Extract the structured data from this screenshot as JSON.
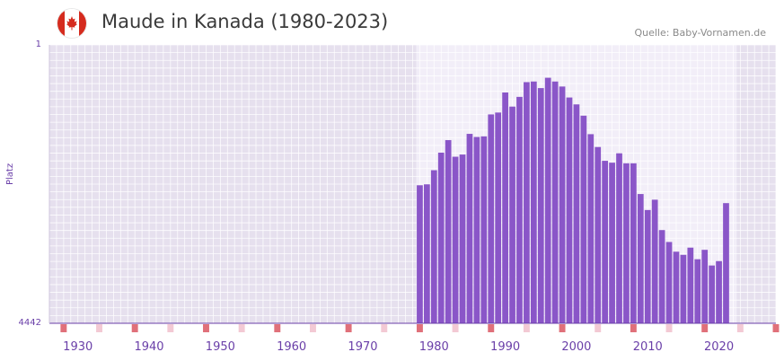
{
  "header": {
    "title": "Maude in Kanada (1980-2023)",
    "source": "Quelle: Baby-Vornamen.de"
  },
  "colors": {
    "bar": "#8a56c8",
    "plot_bg": "#e6e0ee",
    "data_bg": "#f2eef8",
    "marker": "#e0707a",
    "marker_light": "#f3c9d4",
    "axis": "#6a3fa8"
  },
  "chart_data": {
    "type": "bar",
    "title": "Maude in Kanada (1980-2023)",
    "xlabel": "",
    "ylabel": "Platz",
    "y_ticks": [
      "1",
      "4442"
    ],
    "ylim": [
      1,
      4442
    ],
    "y_inverted": true,
    "xlim": [
      1926,
      2028
    ],
    "x_ticks": [
      "1930",
      "1940",
      "1950",
      "1960",
      "1970",
      "1980",
      "1990",
      "2000",
      "2010",
      "2020"
    ],
    "categories": [
      1978,
      1979,
      1980,
      1981,
      1982,
      1983,
      1984,
      1985,
      1986,
      1987,
      1988,
      1989,
      1990,
      1991,
      1992,
      1993,
      1994,
      1995,
      1996,
      1997,
      1998,
      1999,
      2000,
      2001,
      2002,
      2003,
      2004,
      2005,
      2006,
      2007,
      2008,
      2009,
      2010,
      2011,
      2012,
      2013,
      2014,
      2015,
      2016,
      2017,
      2018,
      2019,
      2020,
      2021,
      2022
    ],
    "values": [
      2240,
      2225,
      2000,
      1720,
      1520,
      1785,
      1750,
      1420,
      1470,
      1460,
      1110,
      1080,
      760,
      985,
      830,
      595,
      585,
      690,
      525,
      585,
      665,
      840,
      950,
      1130,
      1425,
      1630,
      1850,
      1880,
      1730,
      1890,
      1890,
      2380,
      2635,
      2470,
      2955,
      3145,
      3300,
      3350,
      3235,
      3420,
      3270,
      3520,
      3450,
      2525,
      4442
    ]
  }
}
